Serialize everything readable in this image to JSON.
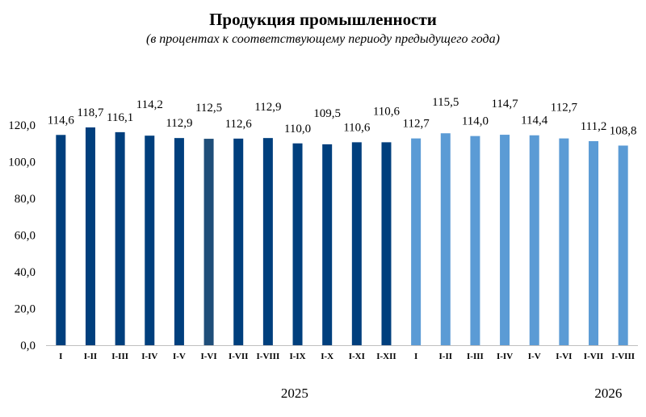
{
  "chart_data": {
    "type": "bar",
    "title": "Продукция промышленности",
    "subtitle": "(в процентах к соответствующему периоду предыдущего года)",
    "xlabel": "",
    "ylabel": "",
    "ylim": [
      0,
      120
    ],
    "yticks": [
      "0,0",
      "20,0",
      "40,0",
      "60,0",
      "80,0",
      "100,0",
      "120,0"
    ],
    "grid": false,
    "categories": [
      "I",
      "I-II",
      "I-III",
      "I-IV",
      "I-V",
      "I-VI",
      "I-VII",
      "I-VIII",
      "I-IX",
      "I-X",
      "I-XI",
      "I-XII",
      "I",
      "I-II",
      "I-III",
      "I-IV",
      "I-V",
      "I-VI",
      "I-VII",
      "I-VIII"
    ],
    "values": [
      114.6,
      118.7,
      116.1,
      114.2,
      112.9,
      112.5,
      112.6,
      112.9,
      110.0,
      109.5,
      110.6,
      110.6,
      112.7,
      115.5,
      114.0,
      114.7,
      114.4,
      112.7,
      111.2,
      108.8
    ],
    "value_labels": [
      "114,6",
      "118,7",
      "116,1",
      "114,2",
      "112,9",
      "112,5",
      "112,6",
      "112,9",
      "110,0",
      "109,5",
      "110,6",
      "110,6",
      "112,7",
      "115,5",
      "114,0",
      "114,7",
      "114,4",
      "112,7",
      "111,2",
      "108,8"
    ],
    "groups": [
      {
        "label": "2025",
        "count": 12,
        "color": "#003f7d"
      },
      {
        "label": "2026",
        "count": 8,
        "color": "#5b9bd5"
      }
    ],
    "highlight": {
      "index": 5,
      "color": "#1f4e79"
    }
  }
}
